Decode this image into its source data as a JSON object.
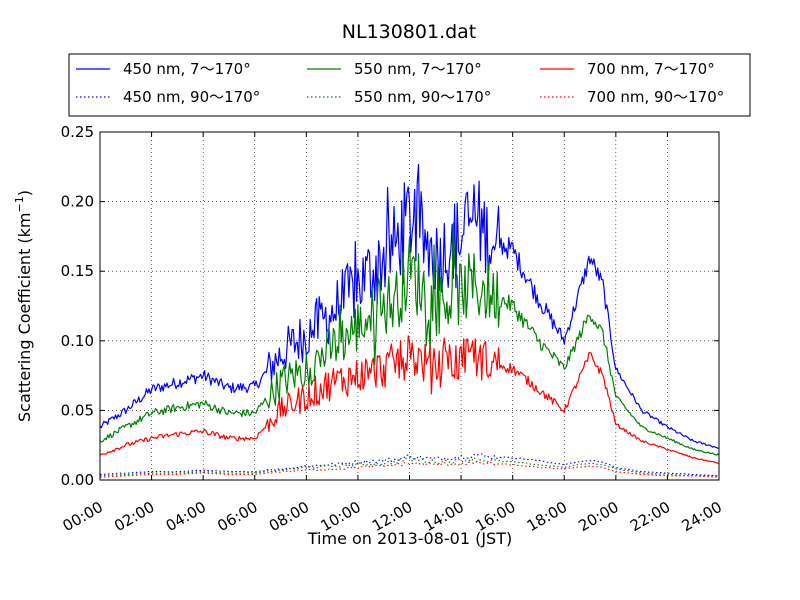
{
  "chart_data": {
    "type": "line",
    "title": "NL130801.dat",
    "xlabel": "Time on 2013-08-01 (JST)",
    "ylabel": "Scattering Coefficient (km",
    "ylabel_sup": "−1",
    "ylabel_close": ")",
    "xlim": [
      0,
      24
    ],
    "ylim": [
      0,
      0.25
    ],
    "grid": true,
    "legend_position": "top",
    "x_tick_labels": [
      "00:00",
      "02:00",
      "04:00",
      "06:00",
      "08:00",
      "10:00",
      "12:00",
      "14:00",
      "16:00",
      "18:00",
      "20:00",
      "22:00",
      "24:00"
    ],
    "y_tick_labels": [
      "0.00",
      "0.05",
      "0.10",
      "0.15",
      "0.20",
      "0.25"
    ],
    "x": [
      0,
      1,
      2,
      3,
      4,
      5,
      6,
      7,
      8,
      9,
      10,
      11,
      11.5,
      12,
      13,
      14,
      14.5,
      15,
      16,
      17,
      18,
      18.5,
      19,
      19.5,
      20,
      21,
      22,
      23,
      24
    ],
    "series": [
      {
        "name": "450 nm, 7～170°",
        "color": "#0000ff",
        "style": "solid",
        "values": [
          0.038,
          0.05,
          0.065,
          0.07,
          0.075,
          0.066,
          0.067,
          0.09,
          0.105,
          0.12,
          0.14,
          0.16,
          0.17,
          0.19,
          0.16,
          0.175,
          0.19,
          0.175,
          0.165,
          0.13,
          0.1,
          0.13,
          0.16,
          0.14,
          0.08,
          0.05,
          0.038,
          0.028,
          0.023
        ]
      },
      {
        "name": "450 nm, 90～170°",
        "color": "#0000ff",
        "style": "dotted",
        "values": [
          0.004,
          0.005,
          0.006,
          0.006,
          0.007,
          0.006,
          0.006,
          0.008,
          0.01,
          0.011,
          0.013,
          0.014,
          0.015,
          0.017,
          0.015,
          0.017,
          0.018,
          0.017,
          0.016,
          0.014,
          0.011,
          0.013,
          0.014,
          0.013,
          0.009,
          0.006,
          0.005,
          0.004,
          0.003
        ]
      },
      {
        "name": "550 nm, 7～170°",
        "color": "#008000",
        "style": "solid",
        "values": [
          0.028,
          0.038,
          0.048,
          0.052,
          0.055,
          0.048,
          0.048,
          0.07,
          0.08,
          0.095,
          0.11,
          0.125,
          0.13,
          0.15,
          0.125,
          0.135,
          0.14,
          0.135,
          0.125,
          0.1,
          0.08,
          0.1,
          0.12,
          0.105,
          0.06,
          0.038,
          0.03,
          0.022,
          0.018
        ]
      },
      {
        "name": "550 nm, 90～170°",
        "color": "#008000",
        "style": "dotted",
        "values": [
          0.003,
          0.004,
          0.005,
          0.005,
          0.006,
          0.005,
          0.005,
          0.007,
          0.009,
          0.01,
          0.011,
          0.012,
          0.013,
          0.015,
          0.013,
          0.014,
          0.015,
          0.014,
          0.013,
          0.011,
          0.009,
          0.011,
          0.012,
          0.011,
          0.008,
          0.005,
          0.004,
          0.003,
          0.003
        ]
      },
      {
        "name": "700 nm, 7～170°",
        "color": "#ff0000",
        "style": "solid",
        "values": [
          0.018,
          0.025,
          0.03,
          0.033,
          0.035,
          0.03,
          0.03,
          0.05,
          0.06,
          0.07,
          0.075,
          0.08,
          0.085,
          0.09,
          0.08,
          0.085,
          0.09,
          0.085,
          0.08,
          0.065,
          0.05,
          0.07,
          0.09,
          0.075,
          0.04,
          0.028,
          0.022,
          0.016,
          0.012
        ]
      },
      {
        "name": "700 nm, 90～170°",
        "color": "#ff0000",
        "style": "dotted",
        "values": [
          0.002,
          0.003,
          0.004,
          0.004,
          0.005,
          0.004,
          0.004,
          0.006,
          0.007,
          0.008,
          0.009,
          0.01,
          0.011,
          0.012,
          0.011,
          0.012,
          0.012,
          0.012,
          0.011,
          0.009,
          0.008,
          0.009,
          0.01,
          0.009,
          0.006,
          0.004,
          0.003,
          0.003,
          0.002
        ]
      }
    ]
  }
}
